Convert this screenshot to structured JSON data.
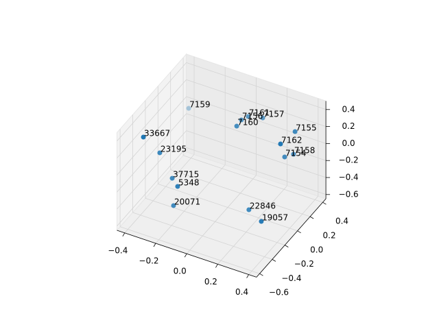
{
  "chart_data": {
    "type": "scatter3d",
    "x": [
      -0.387,
      -0.411,
      -0.335,
      -0.236,
      -0.173,
      -0.184,
      0.209,
      0.322,
      0.005,
      0.001,
      0.02,
      0.098,
      0.319,
      0.301,
      0.304,
      0.336
    ],
    "y": [
      0.332,
      -0.327,
      -0.254,
      -0.3,
      -0.369,
      -0.407,
      -0.178,
      -0.259,
      0.13,
      0.214,
      0.276,
      0.314,
      0.283,
      0.097,
      0.155,
      0.217
    ],
    "z": [
      0,
      0.2,
      0,
      -0.2,
      -0.2,
      -0.4,
      -0.4,
      -0.4,
      0.2,
      0.2,
      0.2,
      0.2,
      0.2,
      0.2,
      0,
      0
    ],
    "labels": [
      "7159",
      "33667",
      "23195",
      "37715",
      "5348",
      "20071",
      "22846",
      "19057",
      "7160",
      "7156",
      "7161",
      "7157",
      "7155",
      "7162",
      "7154",
      "7158"
    ],
    "color": "#1f77b4",
    "xlim": [
      -0.45,
      0.45
    ],
    "ylim": [
      -0.65,
      0.45
    ],
    "zlim": [
      -0.65,
      0.5
    ],
    "xticks": [
      {
        "value": -0.4,
        "label": "−0.4"
      },
      {
        "value": -0.2,
        "label": "−0.2"
      },
      {
        "value": 0,
        "label": "0.0"
      },
      0.2,
      0.4
    ],
    "yticks": [
      {
        "value": -0.6,
        "label": "−0.6"
      },
      {
        "value": -0.4,
        "label": "−0.4"
      },
      {
        "value": -0.2,
        "label": "−0.2"
      },
      {
        "value": 0,
        "label": "0.0"
      },
      0.2,
      0.4
    ],
    "zticks": [
      {
        "value": -0.6,
        "label": "−0.6"
      },
      {
        "value": -0.4,
        "label": "−0.4"
      },
      {
        "value": -0.2,
        "label": "−0.2"
      },
      {
        "value": 0,
        "label": "0.0"
      },
      0.2,
      0.4
    ],
    "grid": true
  }
}
